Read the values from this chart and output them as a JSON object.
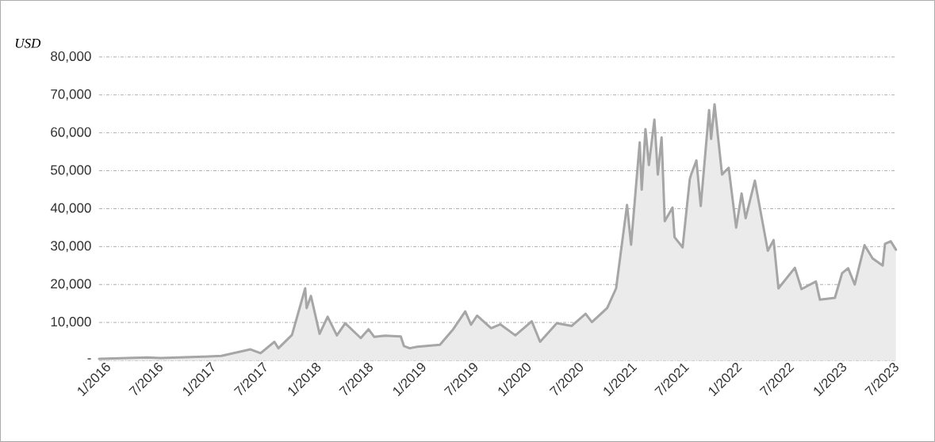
{
  "chart_data": {
    "type": "area",
    "ylabel": "USD",
    "color": "#a6a6a6",
    "grid": "y",
    "xlim": [
      "2016-01-01",
      "2023-08-01"
    ],
    "xticks": [
      {
        "value": "2016-01",
        "label": "1/2016"
      },
      {
        "value": "2016-07",
        "label": "7/2016"
      },
      {
        "value": "2017-01",
        "label": "1/2017"
      },
      {
        "value": "2017-07",
        "label": "7/2017"
      },
      {
        "value": "2018-01",
        "label": "1/2018"
      },
      {
        "value": "2018-07",
        "label": "7/2018"
      },
      {
        "value": "2019-01",
        "label": "1/2019"
      },
      {
        "value": "2019-07",
        "label": "7/2019"
      },
      {
        "value": "2020-01",
        "label": "1/2020"
      },
      {
        "value": "2020-07",
        "label": "7/2020"
      },
      {
        "value": "2021-01",
        "label": "1/2021"
      },
      {
        "value": "2021-07",
        "label": "7/2021"
      },
      {
        "value": "2022-01",
        "label": "1/2022"
      },
      {
        "value": "2022-07",
        "label": "7/2022"
      },
      {
        "value": "2023-01",
        "label": "1/2023"
      },
      {
        "value": "2023-07",
        "label": "7/2023"
      }
    ],
    "ylim": [
      0,
      80000
    ],
    "yticks": [
      {
        "value": 0,
        "label": "-"
      },
      {
        "value": 10000,
        "label": "10,000"
      },
      {
        "value": 20000,
        "label": "20,000"
      },
      {
        "value": 30000,
        "label": "30,000"
      },
      {
        "value": 40000,
        "label": "40,000"
      },
      {
        "value": 50000,
        "label": "50,000"
      },
      {
        "value": 60000,
        "label": "60,000"
      },
      {
        "value": 70000,
        "label": "70,000"
      },
      {
        "value": 80000,
        "label": "80,000"
      }
    ],
    "x": [
      "2016-01-01",
      "2016-06-17",
      "2016-08-01",
      "2017-01-01",
      "2017-03-01",
      "2017-06-10",
      "2017-07-15",
      "2017-09-01",
      "2017-09-15",
      "2017-11-01",
      "2017-12-17",
      "2017-12-22",
      "2018-01-06",
      "2018-02-05",
      "2018-03-05",
      "2018-04-06",
      "2018-05-05",
      "2018-06-28",
      "2018-07-25",
      "2018-08-14",
      "2018-09-20",
      "2018-11-14",
      "2018-11-25",
      "2018-12-15",
      "2019-01-10",
      "2019-03-30",
      "2019-05-15",
      "2019-06-26",
      "2019-07-16",
      "2019-08-06",
      "2019-09-24",
      "2019-10-26",
      "2019-12-17",
      "2020-02-12",
      "2020-03-12",
      "2020-05-09",
      "2020-06-30",
      "2020-08-17",
      "2020-09-08",
      "2020-10-31",
      "2020-12-01",
      "2021-01-08",
      "2021-01-22",
      "2021-02-21",
      "2021-02-28",
      "2021-03-13",
      "2021-03-25",
      "2021-04-13",
      "2021-04-25",
      "2021-05-08",
      "2021-05-19",
      "2021-06-15",
      "2021-06-22",
      "2021-07-20",
      "2021-08-14",
      "2021-08-20",
      "2021-09-06",
      "2021-09-21",
      "2021-10-20",
      "2021-10-27",
      "2021-11-08",
      "2021-12-04",
      "2021-12-27",
      "2022-01-22",
      "2022-02-10",
      "2022-02-24",
      "2022-03-28",
      "2022-05-12",
      "2022-06-01",
      "2022-06-18",
      "2022-08-14",
      "2022-09-06",
      "2022-10-26",
      "2022-11-09",
      "2022-12-31",
      "2023-01-25",
      "2023-02-15",
      "2023-03-10",
      "2023-04-13",
      "2023-05-11",
      "2023-06-15",
      "2023-06-23",
      "2023-07-13",
      "2023-07-31"
    ],
    "values": [
      400,
      800,
      600,
      1000,
      1200,
      2900,
      1900,
      4900,
      3200,
      6700,
      19000,
      13800,
      17000,
      7000,
      11500,
      6600,
      9800,
      5900,
      8200,
      6200,
      6500,
      6300,
      3800,
      3200,
      3600,
      4100,
      8200,
      12900,
      9400,
      11800,
      8500,
      9500,
      6600,
      10300,
      4900,
      9800,
      9100,
      12300,
      10100,
      13800,
      19000,
      41000,
      30500,
      57500,
      45000,
      61000,
      51500,
      63500,
      49000,
      58800,
      36700,
      40300,
      32500,
      29800,
      47800,
      49300,
      52700,
      40700,
      66000,
      58400,
      67500,
      49000,
      50800,
      35000,
      44000,
      37500,
      47400,
      28900,
      31700,
      19000,
      24400,
      18800,
      20800,
      16000,
      16500,
      23000,
      24300,
      20000,
      30400,
      26900,
      25000,
      30700,
      31400,
      29200
    ]
  }
}
